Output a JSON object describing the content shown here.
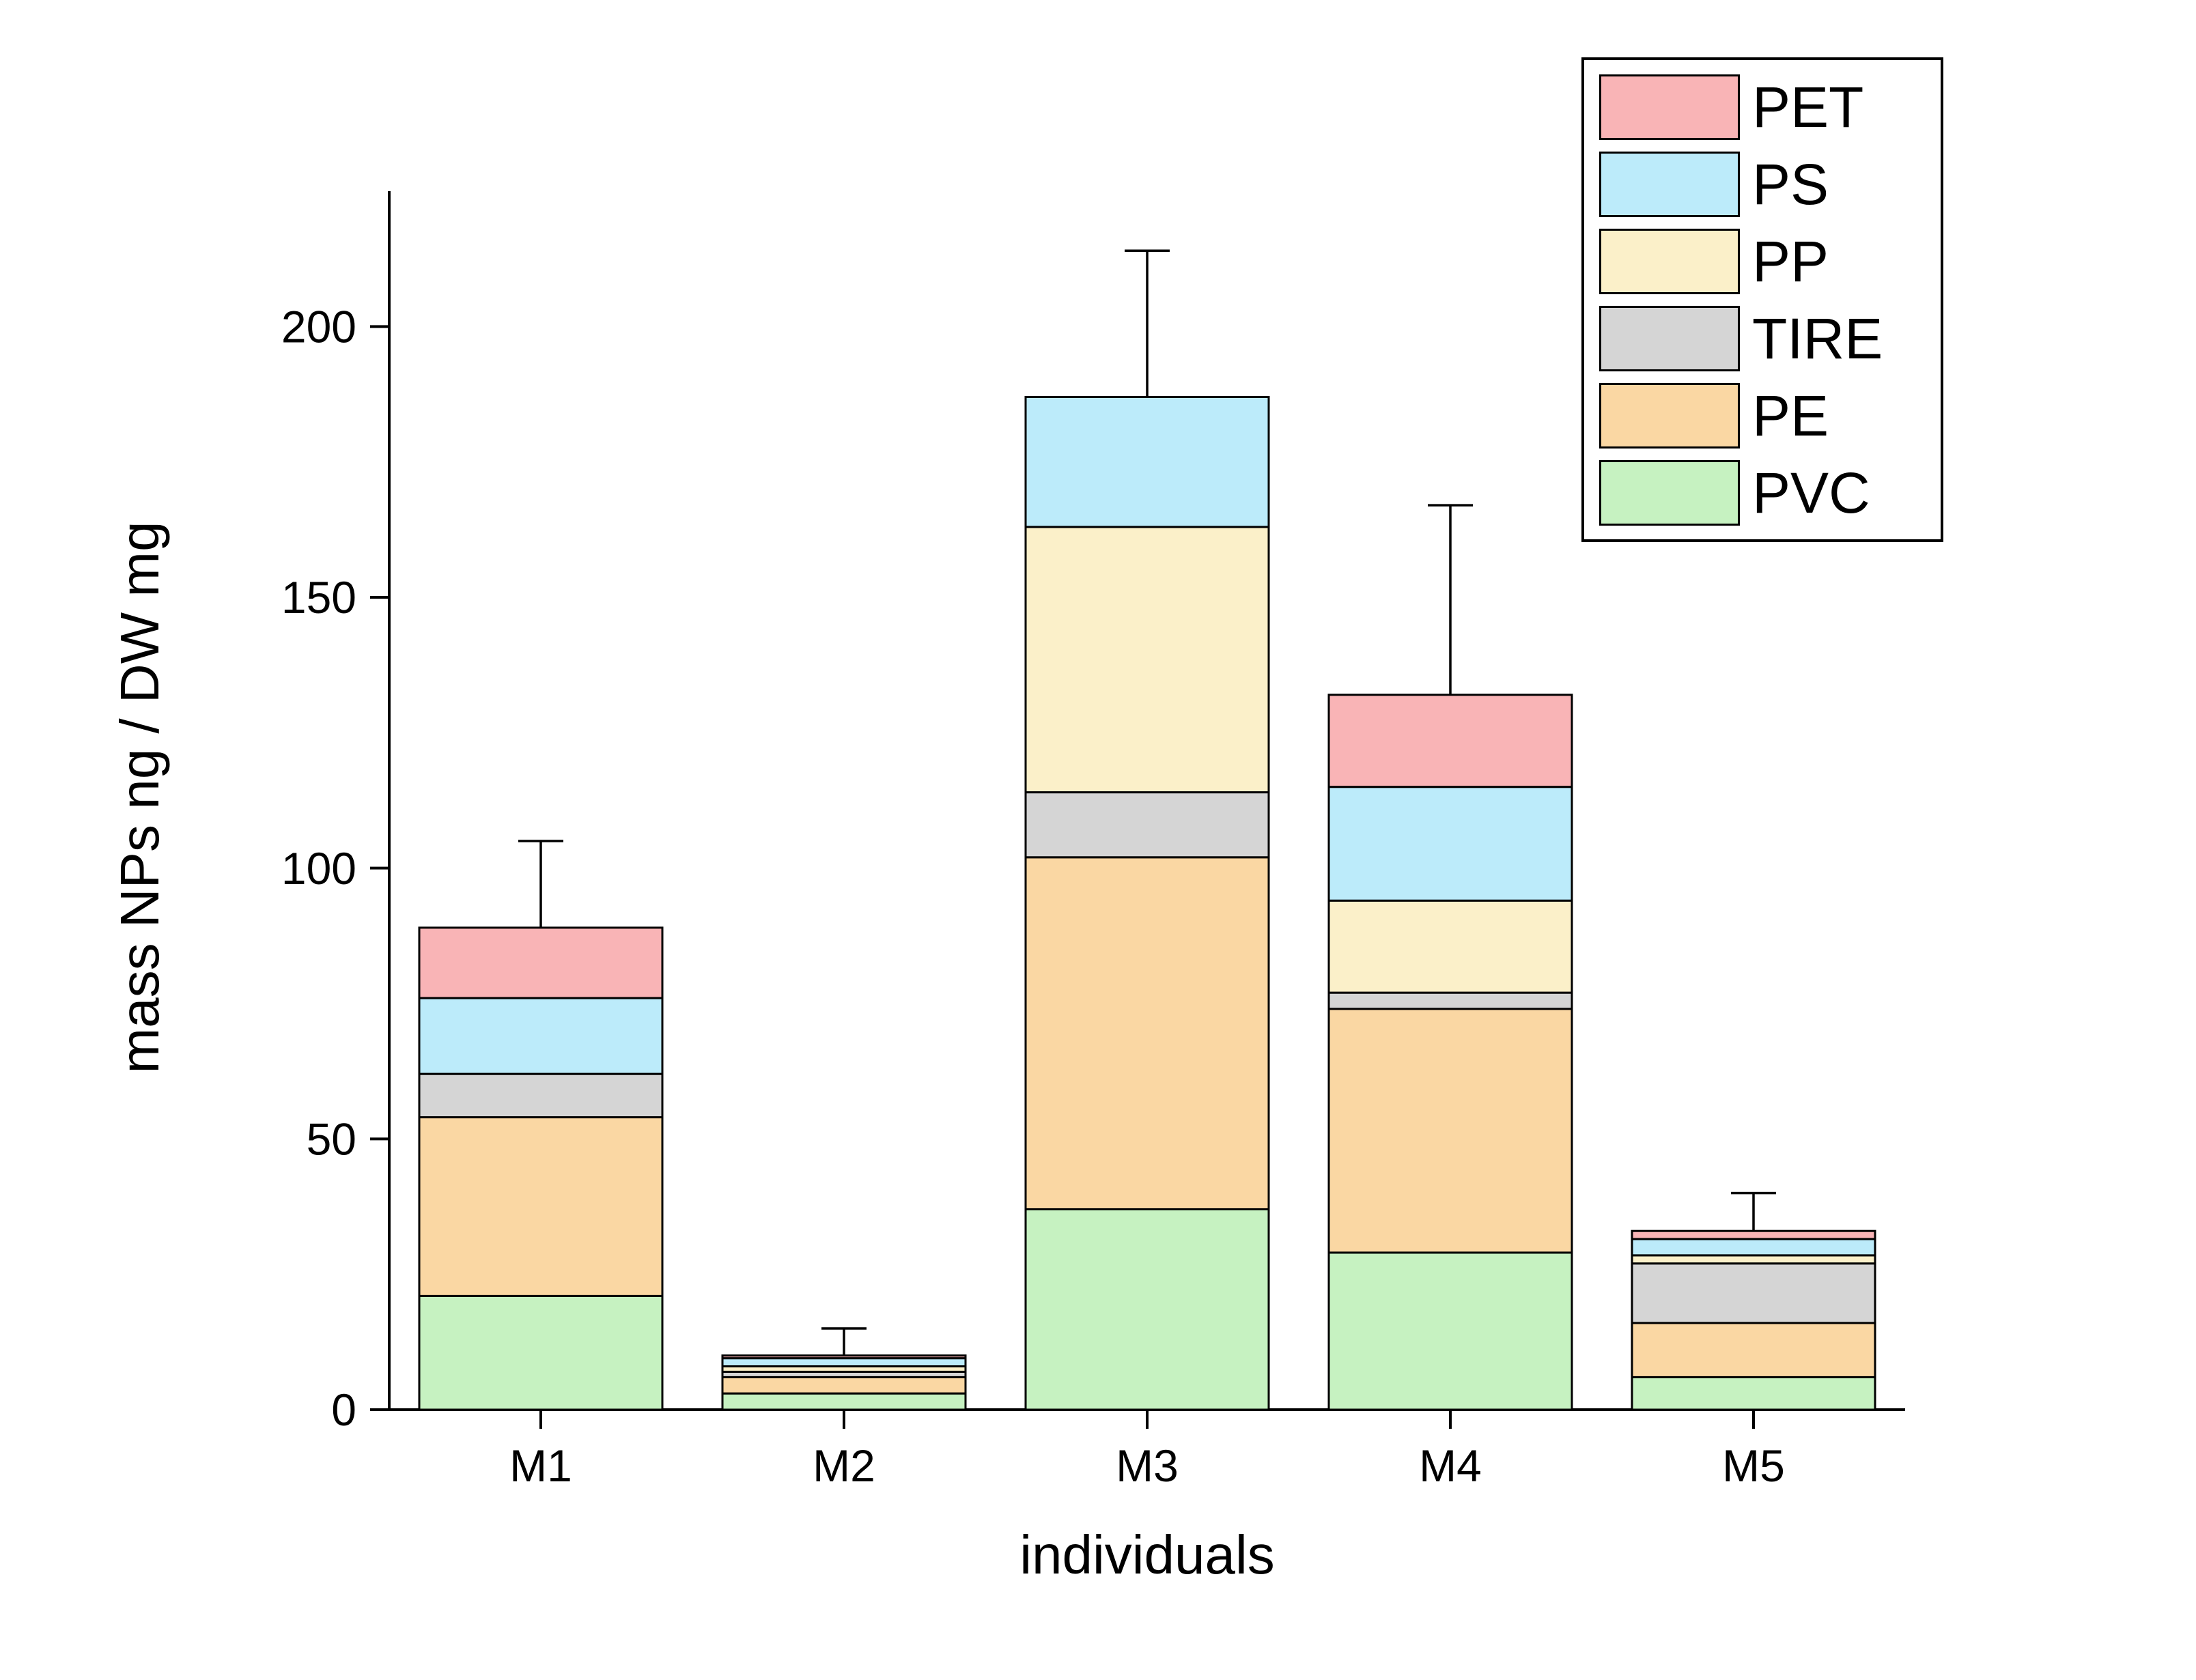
{
  "chart_data": {
    "type": "bar",
    "stacked": true,
    "categories": [
      "M1",
      "M2",
      "M3",
      "M4",
      "M5"
    ],
    "series": [
      {
        "name": "PVC",
        "color": "#C6F2C1",
        "values": [
          21,
          3,
          37,
          29,
          6
        ]
      },
      {
        "name": "PE",
        "color": "#FAD7A3",
        "values": [
          33,
          3,
          65,
          45,
          10
        ]
      },
      {
        "name": "TIRE",
        "color": "#D5D5D5",
        "values": [
          8,
          1,
          12,
          3,
          11
        ]
      },
      {
        "name": "PP",
        "color": "#FBF0C9",
        "values": [
          0,
          1,
          49,
          17,
          1.5
        ]
      },
      {
        "name": "PS",
        "color": "#BCEBFA",
        "values": [
          14,
          1.5,
          24,
          21,
          3
        ]
      },
      {
        "name": "PET",
        "color": "#F9B4B6",
        "values": [
          13,
          0.5,
          0,
          17,
          1.5
        ]
      }
    ],
    "errors": [
      16,
      5,
      27,
      35,
      7
    ],
    "xlabel": "individuals",
    "ylabel": "mass NPs ng / DW mg",
    "ylim": [
      0,
      225
    ],
    "yticks": [
      0,
      50,
      100,
      150,
      200
    ],
    "legend_position": "top-right",
    "legend_order": [
      "PET",
      "PS",
      "PP",
      "TIRE",
      "PE",
      "PVC"
    ],
    "grid": false,
    "axis_color": "#000000",
    "bar_outline_color": "#000000"
  }
}
